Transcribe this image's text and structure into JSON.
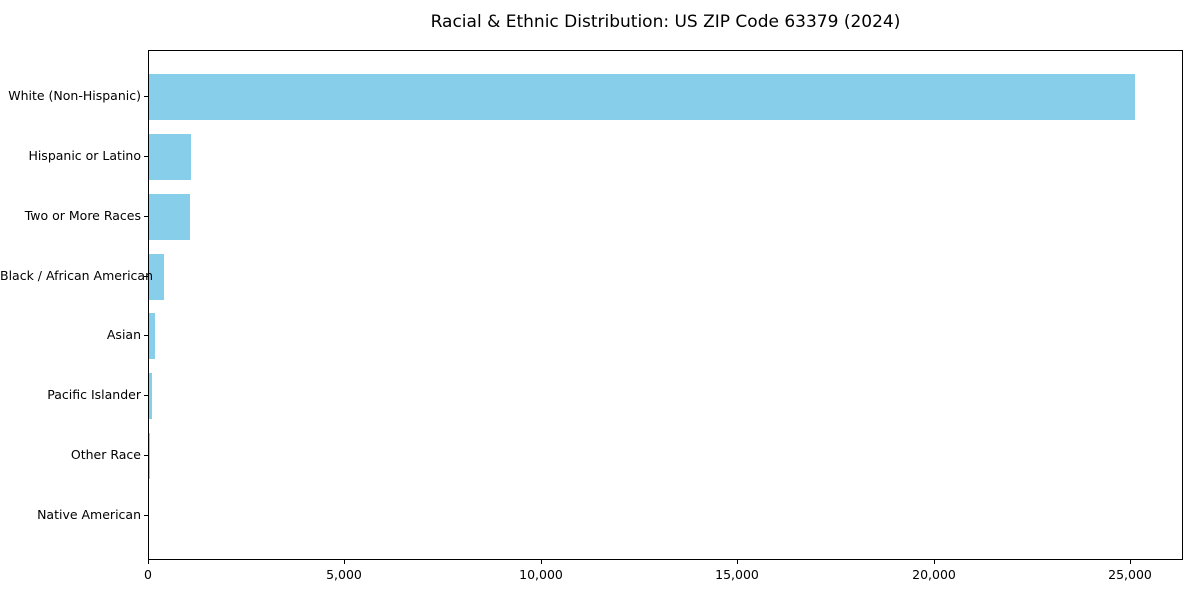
{
  "title": "Racial & Ethnic Distribution: US ZIP Code 63379 (2024)",
  "chart_data": {
    "type": "bar",
    "orientation": "horizontal",
    "title": "Racial & Ethnic Distribution: US ZIP Code 63379 (2024)",
    "categories": [
      "White (Non-Hispanic)",
      "Hispanic or Latino",
      "Two or More Races",
      "Black / African American",
      "Asian",
      "Pacific Islander",
      "Other Race",
      "Native American"
    ],
    "values": [
      25100,
      1080,
      1050,
      380,
      150,
      80,
      30,
      0
    ],
    "xlabel": "",
    "ylabel": "",
    "xlim": [
      0,
      26350
    ],
    "x_ticks": [
      0,
      5000,
      10000,
      15000,
      20000,
      25000
    ],
    "x_tick_labels": [
      "0",
      "5,000",
      "10,000",
      "15,000",
      "20,000",
      "25,000"
    ],
    "grid": false,
    "legend": null,
    "bar_color": "#87CEEB"
  },
  "colors": {
    "bar": "#87CEEB",
    "axis": "#000000",
    "background": "#ffffff",
    "text": "#000000"
  }
}
